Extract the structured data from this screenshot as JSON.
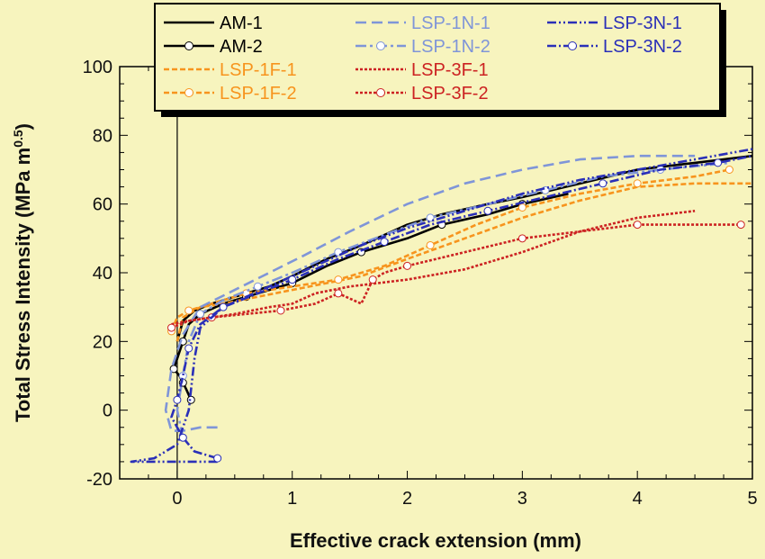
{
  "chart_data": {
    "type": "line",
    "xlabel": "Effective crack extension (mm)",
    "ylabel": "Total Stress Intensity (MPa m",
    "ylabel_sup": "0.5",
    "ylabel_close": ")",
    "xlim": [
      -0.5,
      5
    ],
    "ylim": [
      -20,
      100
    ],
    "xticks": [
      0,
      1,
      2,
      3,
      4,
      5
    ],
    "yticks": [
      -20,
      0,
      20,
      40,
      60,
      80,
      100
    ],
    "grid": false,
    "legend_position": "top",
    "series": [
      {
        "name": "AM-1",
        "color": "#000000",
        "dash": "solid",
        "marker": false,
        "x": [
          0.0,
          0.05,
          0.15,
          0.3,
          0.5,
          0.8,
          1.0,
          1.3,
          1.6,
          2.0,
          2.3,
          2.7,
          3.0,
          3.5,
          4.0,
          4.5,
          5.0
        ],
        "y": [
          20,
          26,
          29,
          31,
          33,
          36,
          39,
          44,
          48,
          54,
          57,
          60,
          62,
          66,
          70,
          72,
          74
        ]
      },
      {
        "name": "AM-2",
        "color": "#000000",
        "dash": "solid",
        "marker": true,
        "x": [
          0.12,
          0.08,
          0.05,
          0.02,
          -0.03,
          0.0,
          0.05,
          0.1,
          0.2,
          0.4,
          0.6,
          0.8,
          1.0,
          1.3,
          1.6,
          2.0,
          2.3,
          2.7,
          3.0,
          3.4
        ],
        "y": [
          3,
          6,
          8,
          10,
          12,
          15,
          20,
          25,
          28,
          31,
          33,
          35,
          37,
          42,
          46,
          50,
          54,
          57,
          60,
          63
        ]
      },
      {
        "name": "LSP-1F-1",
        "color": "#f7941d",
        "dash": "6,3",
        "marker": false,
        "x": [
          0.0,
          0.05,
          0.1,
          0.2,
          0.4,
          0.7,
          1.0,
          1.3,
          1.6,
          2.0,
          2.5,
          3.0,
          3.5,
          4.0,
          4.5,
          5.0
        ],
        "y": [
          20,
          27,
          28,
          30,
          31,
          33,
          35,
          37,
          39,
          44,
          50,
          56,
          61,
          65,
          66,
          66
        ]
      },
      {
        "name": "LSP-1F-2",
        "color": "#f7941d",
        "dash": "6,3",
        "marker": true,
        "x": [
          -0.05,
          0.0,
          0.1,
          0.3,
          0.6,
          1.0,
          1.4,
          1.8,
          2.2,
          2.6,
          3.0,
          3.5,
          4.0,
          4.5,
          4.8
        ],
        "y": [
          23,
          27,
          29,
          31,
          34,
          36,
          38,
          42,
          48,
          54,
          59,
          63,
          66,
          68,
          70
        ]
      },
      {
        "name": "LSP-1N-1",
        "color": "#7f95d8",
        "dash": "12,6",
        "marker": false,
        "x": [
          0.35,
          0.2,
          0.05,
          -0.05,
          -0.1,
          -0.05,
          0.05,
          0.2,
          0.5,
          0.8,
          1.1,
          1.5,
          2.0,
          2.5,
          3.0,
          3.5,
          4.0,
          4.5
        ],
        "y": [
          -5,
          -5,
          -6,
          -6,
          0,
          12,
          22,
          30,
          35,
          40,
          45,
          52,
          60,
          66,
          70,
          73,
          74,
          74
        ]
      },
      {
        "name": "LSP-1N-2",
        "color": "#7f95d8",
        "dash": "12,4,3,4",
        "marker": true,
        "x": [
          0.05,
          0.0,
          0.05,
          0.1,
          0.2,
          0.4,
          0.7,
          1.0,
          1.4,
          1.8,
          2.2,
          2.7,
          3.2,
          3.7,
          4.2,
          4.8
        ],
        "y": [
          -8,
          0,
          10,
          20,
          28,
          32,
          36,
          40,
          46,
          51,
          56,
          60,
          64,
          68,
          70,
          72
        ]
      },
      {
        "name": "LSP-3F-1",
        "color": "#cc2222",
        "dash": "3,2",
        "marker": false,
        "x": [
          -0.05,
          0.1,
          0.3,
          0.5,
          0.8,
          1.0,
          1.2,
          1.5,
          2.0,
          2.5,
          3.0,
          3.5,
          4.0,
          4.5
        ],
        "y": [
          25,
          26,
          27,
          28,
          30,
          31,
          34,
          36,
          38,
          41,
          46,
          52,
          56,
          58
        ]
      },
      {
        "name": "LSP-3F-2",
        "color": "#cc2222",
        "dash": "3,2",
        "marker": true,
        "x": [
          -0.05,
          0.1,
          0.3,
          0.6,
          0.9,
          1.2,
          1.4,
          1.6,
          1.7,
          1.8,
          2.0,
          2.5,
          3.0,
          3.5,
          4.0,
          4.5,
          4.9
        ],
        "y": [
          24,
          26,
          27,
          28,
          29,
          31,
          34,
          31,
          38,
          40,
          42,
          46,
          50,
          52,
          54,
          54,
          54
        ]
      },
      {
        "name": "LSP-3N-1",
        "color": "#2a2fb8",
        "dash": "10,3,2,3,2,3",
        "marker": false,
        "x": [
          0.35,
          0.1,
          -0.3,
          -0.4,
          -0.2,
          0.0,
          0.1,
          0.15,
          0.2,
          0.4,
          0.8,
          1.2,
          1.6,
          2.0,
          2.5,
          3.0,
          3.5,
          4.0,
          4.5,
          5.0
        ],
        "y": [
          -15,
          -15,
          -15,
          -15,
          -14,
          -10,
          0,
          15,
          24,
          30,
          36,
          42,
          48,
          53,
          58,
          63,
          67,
          70,
          73,
          76
        ]
      },
      {
        "name": "LSP-3N-2",
        "color": "#2a2fb8",
        "dash": "10,3,2,3",
        "marker": true,
        "x": [
          0.35,
          0.15,
          0.05,
          -0.05,
          0.0,
          0.05,
          0.1,
          0.2,
          0.4,
          0.7,
          1.0,
          1.4,
          1.8,
          2.2,
          2.7,
          3.2,
          3.7,
          4.2,
          4.7,
          5.0
        ],
        "y": [
          -14,
          -12,
          -8,
          -2,
          3,
          10,
          18,
          25,
          30,
          34,
          38,
          44,
          49,
          54,
          58,
          62,
          66,
          70,
          72,
          74
        ]
      }
    ]
  }
}
